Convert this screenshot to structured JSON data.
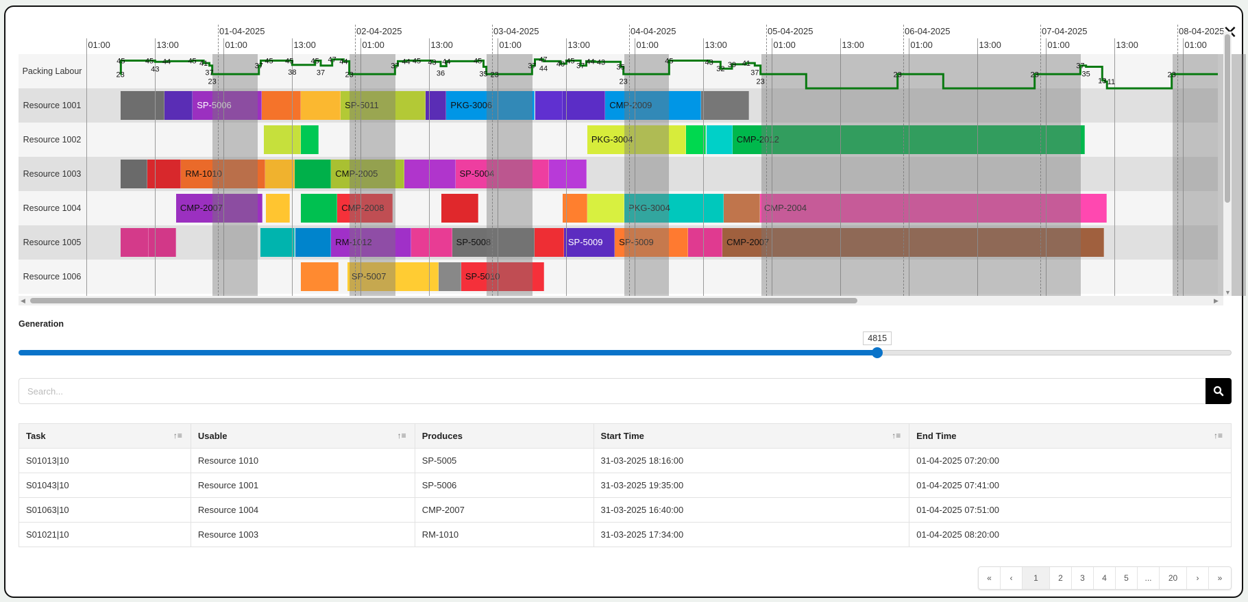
{
  "close_icon": "close-icon",
  "gantt": {
    "rows": [
      "Packing Labour",
      "Resource 1001",
      "Resource 1002",
      "Resource 1003",
      "Resource 1004",
      "Resource 1005",
      "Resource 1006"
    ],
    "date_labels": [
      "01-04-2025",
      "02-04-2025",
      "03-04-2025",
      "04-04-2025",
      "05-04-2025",
      "06-04-2025",
      "07-04-2025",
      "08-04-2025"
    ],
    "time_labels": [
      "01:00",
      "13:00"
    ],
    "line_color": "#0a7a12",
    "non_working": [
      [
        "31-03-2025 23:00",
        "01-04-2025 07:00"
      ],
      [
        "01-04-2025 23:00",
        "02-04-2025 07:05"
      ],
      [
        "02-04-2025 23:00",
        "03-04-2025 07:05"
      ],
      [
        "03-04-2025 23:10",
        "04-04-2025 07:00"
      ],
      [
        "04-04-2025 23:10",
        "07-04-2025 07:05"
      ],
      [
        "07-04-2025 23:10",
        "08-04-2025 12:00"
      ]
    ],
    "labour": [
      [
        "31-03-2025 06:55",
        23
      ],
      [
        "31-03-2025 07:00",
        45
      ],
      [
        "31-03-2025 12:00",
        45
      ],
      [
        "31-03-2025 13:00",
        43
      ],
      [
        "31-03-2025 15:00",
        44
      ],
      [
        "31-03-2025 19:30",
        45
      ],
      [
        "31-03-2025 21:30",
        41
      ],
      [
        "31-03-2025 22:30",
        37
      ],
      [
        "31-03-2025 23:00",
        23
      ],
      [
        "01-04-2025 07:10",
        37
      ],
      [
        "01-04-2025 07:30",
        45
      ],
      [
        "01-04-2025 12:30",
        45
      ],
      [
        "01-04-2025 13:00",
        38
      ],
      [
        "01-04-2025 17:00",
        45
      ],
      [
        "01-04-2025 18:00",
        37
      ],
      [
        "01-04-2025 20:00",
        47
      ],
      [
        "01-04-2025 22:00",
        44
      ],
      [
        "01-04-2025 23:00",
        23
      ],
      [
        "02-04-2025 07:00",
        37
      ],
      [
        "02-04-2025 07:30",
        44
      ],
      [
        "02-04-2025 09:00",
        45
      ],
      [
        "02-04-2025 13:30",
        43
      ],
      [
        "02-04-2025 15:00",
        36
      ],
      [
        "02-04-2025 16:00",
        44
      ],
      [
        "02-04-2025 21:30",
        45
      ],
      [
        "02-04-2025 22:30",
        35
      ],
      [
        "02-04-2025 23:00",
        23
      ],
      [
        "03-04-2025 07:00",
        37
      ],
      [
        "03-04-2025 07:30",
        47
      ],
      [
        "03-04-2025 09:00",
        44
      ],
      [
        "03-04-2025 12:00",
        40
      ],
      [
        "03-04-2025 13:00",
        45
      ],
      [
        "03-04-2025 15:30",
        37
      ],
      [
        "03-04-2025 16:30",
        44
      ],
      [
        "03-04-2025 18:00",
        43
      ],
      [
        "03-04-2025 22:30",
        35
      ],
      [
        "03-04-2025 23:00",
        23
      ],
      [
        "04-04-2025 07:00",
        45
      ],
      [
        "04-04-2025 14:00",
        43
      ],
      [
        "04-04-2025 16:00",
        32
      ],
      [
        "04-04-2025 18:00",
        39
      ],
      [
        "04-04-2025 20:30",
        41
      ],
      [
        "04-04-2025 22:00",
        37
      ],
      [
        "04-04-2025 23:00",
        23
      ],
      [
        "05-04-2025 07:00",
        0
      ],
      [
        "05-04-2025 23:00",
        23
      ],
      [
        "06-04-2025 07:00",
        0
      ],
      [
        "06-04-2025 23:00",
        23
      ],
      [
        "07-04-2025 07:00",
        37
      ],
      [
        "07-04-2025 08:00",
        35
      ],
      [
        "07-04-2025 10:50",
        13
      ],
      [
        "07-04-2025 11:20",
        11
      ],
      [
        "07-04-2025 11:40",
        0
      ],
      [
        "07-04-2025 23:00",
        23
      ]
    ],
    "bars": [
      [
        {
          "start": "31-03-2025 07:00",
          "end": "31-03-2025 14:40",
          "color": "#6e6e6e",
          "label": ""
        },
        {
          "start": "31-03-2025 14:40",
          "end": "31-03-2025 19:35",
          "color": "#5a2db5",
          "label": ""
        },
        {
          "start": "31-03-2025 19:35",
          "end": "01-04-2025 07:41",
          "color": "#9b30c0",
          "label": "SP-5006",
          "text_color": "#ffffff"
        },
        {
          "start": "01-04-2025 07:41",
          "end": "01-04-2025 14:30",
          "color": "#f5732a",
          "label": ""
        },
        {
          "start": "01-04-2025 14:30",
          "end": "01-04-2025 21:30",
          "color": "#fbb830",
          "label": ""
        },
        {
          "start": "01-04-2025 21:30",
          "end": "02-04-2025 12:25",
          "color": "#b3c936",
          "label": "SP-5011"
        },
        {
          "start": "02-04-2025 12:25",
          "end": "02-04-2025 16:00",
          "color": "#5a2db5",
          "label": ""
        },
        {
          "start": "02-04-2025 16:00",
          "end": "03-04-2025 07:30",
          "color": "#0096e6",
          "label": "PKG-3006"
        },
        {
          "start": "03-04-2025 07:30",
          "end": "03-04-2025 12:25",
          "color": "#6030d0",
          "label": ""
        },
        {
          "start": "03-04-2025 12:25",
          "end": "03-04-2025 19:50",
          "color": "#5b2dc6",
          "label": ""
        },
        {
          "start": "03-04-2025 19:50",
          "end": "04-04-2025 12:35",
          "color": "#0096e6",
          "label": "CMP-2009"
        },
        {
          "start": "04-04-2025 12:35",
          "end": "04-04-2025 21:00",
          "color": "#777777",
          "label": ""
        }
      ],
      [
        {
          "start": "01-04-2025 08:00",
          "end": "01-04-2025 14:30",
          "color": "#c6e03c",
          "label": ""
        },
        {
          "start": "01-04-2025 14:30",
          "end": "01-04-2025 17:40",
          "color": "#00c853",
          "label": ""
        },
        {
          "start": "03-04-2025 16:40",
          "end": "04-04-2025 09:55",
          "color": "#d7ec3b",
          "label": "PKG-3004"
        },
        {
          "start": "04-04-2025 09:55",
          "end": "04-04-2025 13:30",
          "color": "#00d84f",
          "label": ""
        },
        {
          "start": "04-04-2025 13:30",
          "end": "04-04-2025 18:05",
          "color": "#00d0c8",
          "label": ""
        },
        {
          "start": "04-04-2025 18:05",
          "end": "07-04-2025 07:50",
          "color": "#00b84c",
          "label": "CMP-2012"
        }
      ],
      [
        {
          "start": "31-03-2025 07:00",
          "end": "31-03-2025 11:35",
          "color": "#6a6a6a",
          "label": ""
        },
        {
          "start": "31-03-2025 11:35",
          "end": "31-03-2025 17:34",
          "color": "#d8282c",
          "label": ""
        },
        {
          "start": "31-03-2025 17:34",
          "end": "01-04-2025 08:20",
          "color": "#ea6a2a",
          "label": "RM-1010"
        },
        {
          "start": "01-04-2025 08:20",
          "end": "01-04-2025 13:25",
          "color": "#f0b22e",
          "label": ""
        },
        {
          "start": "01-04-2025 13:25",
          "end": "01-04-2025 19:50",
          "color": "#00b04a",
          "label": ""
        },
        {
          "start": "01-04-2025 19:50",
          "end": "02-04-2025 08:35",
          "color": "#a9c032",
          "label": "CMP-2005"
        },
        {
          "start": "02-04-2025 08:35",
          "end": "02-04-2025 17:35",
          "color": "#b035cc",
          "label": ""
        },
        {
          "start": "02-04-2025 17:35",
          "end": "03-04-2025 10:00",
          "color": "#ee3ea0",
          "label": "SP-5004"
        },
        {
          "start": "03-04-2025 10:00",
          "end": "03-04-2025 16:35",
          "color": "#b83ad8",
          "label": ""
        }
      ],
      [
        {
          "start": "31-03-2025 16:40",
          "end": "01-04-2025 07:51",
          "color": "#9b30c0",
          "label": "CMP-2007"
        },
        {
          "start": "01-04-2025 08:25",
          "end": "01-04-2025 12:35",
          "color": "#ffc530",
          "label": ""
        },
        {
          "start": "01-04-2025 14:30",
          "end": "01-04-2025 20:55",
          "color": "#00c050",
          "label": ""
        },
        {
          "start": "01-04-2025 20:55",
          "end": "02-04-2025 06:35",
          "color": "#f5313a",
          "label": "CMP-2008"
        },
        {
          "start": "02-04-2025 15:10",
          "end": "02-04-2025 21:35",
          "color": "#e0282c",
          "label": ""
        },
        {
          "start": "03-04-2025 12:20",
          "end": "03-04-2025 16:40",
          "color": "#ff7f2e",
          "label": ""
        },
        {
          "start": "03-04-2025 16:40",
          "end": "03-04-2025 23:10",
          "color": "#d8f040",
          "label": ""
        },
        {
          "start": "03-04-2025 23:10",
          "end": "04-04-2025 16:35",
          "color": "#00c8bc",
          "label": "PKG-3004"
        },
        {
          "start": "04-04-2025 16:35",
          "end": "04-04-2025 22:55",
          "color": "#c0754c",
          "label": ""
        },
        {
          "start": "04-04-2025 22:55",
          "end": "07-04-2025 11:40",
          "color": "#ff48b0",
          "label": "CMP-2004"
        }
      ],
      [
        {
          "start": "31-03-2025 07:00",
          "end": "31-03-2025 11:55",
          "color": "#d43a8a",
          "label": ""
        },
        {
          "start": "31-03-2025 11:55",
          "end": "31-03-2025 16:40",
          "color": "#d23888",
          "label": ""
        },
        {
          "start": "01-04-2025 07:25",
          "end": "01-04-2025 13:30",
          "color": "#00b4ae",
          "label": ""
        },
        {
          "start": "01-04-2025 13:30",
          "end": "01-04-2025 19:50",
          "color": "#0084cc",
          "label": ""
        },
        {
          "start": "01-04-2025 19:50",
          "end": "02-04-2025 09:50",
          "color": "#a030c8",
          "label": "RM-1012"
        },
        {
          "start": "02-04-2025 09:50",
          "end": "02-04-2025 17:00",
          "color": "#e83c94",
          "label": ""
        },
        {
          "start": "02-04-2025 17:00",
          "end": "03-04-2025 07:25",
          "color": "#707070",
          "label": "SP-5008"
        },
        {
          "start": "03-04-2025 07:25",
          "end": "03-04-2025 12:35",
          "color": "#ee2e34",
          "label": ""
        },
        {
          "start": "03-04-2025 12:35",
          "end": "03-04-2025 21:30",
          "color": "#5c2cc0",
          "label": "SP-5009",
          "text_color": "#ffffff"
        },
        {
          "start": "03-04-2025 21:30",
          "end": "04-04-2025 10:20",
          "color": "#ff7a30",
          "label": "SP-5009"
        },
        {
          "start": "04-04-2025 10:20",
          "end": "04-04-2025 16:20",
          "color": "#e03a90",
          "label": ""
        },
        {
          "start": "04-04-2025 16:20",
          "end": "07-04-2025 11:10",
          "color": "#a0603e",
          "label": "CMP-2007"
        }
      ],
      [
        {
          "start": "01-04-2025 14:30",
          "end": "01-04-2025 21:10",
          "color": "#ff8a30",
          "label": ""
        },
        {
          "start": "01-04-2025 22:40",
          "end": "02-04-2025 14:35",
          "color": "#ffcc33",
          "label": "SP-5007"
        },
        {
          "start": "02-04-2025 14:35",
          "end": "02-04-2025 18:35",
          "color": "#888888",
          "label": ""
        },
        {
          "start": "02-04-2025 18:35",
          "end": "03-04-2025 09:10",
          "color": "#f5303a",
          "label": "SP-5010"
        }
      ]
    ]
  },
  "generation": {
    "label": "Generation",
    "value": "4815",
    "fraction": 0.708,
    "color": "#0a73c9"
  },
  "search": {
    "placeholder": "Search...",
    "value": "",
    "icon": "search-icon"
  },
  "table": {
    "columns": [
      {
        "label": "Task",
        "sortable": true
      },
      {
        "label": "Usable",
        "sortable": true
      },
      {
        "label": "Produces",
        "sortable": false
      },
      {
        "label": "Start Time",
        "sortable": true
      },
      {
        "label": "End Time",
        "sortable": true
      }
    ],
    "rows": [
      [
        "S01013|10",
        "Resource 1010",
        "SP-5005",
        "31-03-2025 18:16:00",
        "01-04-2025 07:20:00"
      ],
      [
        "S01043|10",
        "Resource 1001",
        "SP-5006",
        "31-03-2025 19:35:00",
        "01-04-2025 07:41:00"
      ],
      [
        "S01063|10",
        "Resource 1004",
        "CMP-2007",
        "31-03-2025 16:40:00",
        "01-04-2025 07:51:00"
      ],
      [
        "S01021|10",
        "Resource 1003",
        "RM-1010",
        "31-03-2025 17:34:00",
        "01-04-2025 08:20:00"
      ]
    ]
  },
  "pagination": {
    "items": [
      "«",
      "‹",
      "1",
      "2",
      "3",
      "4",
      "5",
      "...",
      "20",
      "›",
      "»"
    ],
    "active": "1"
  }
}
